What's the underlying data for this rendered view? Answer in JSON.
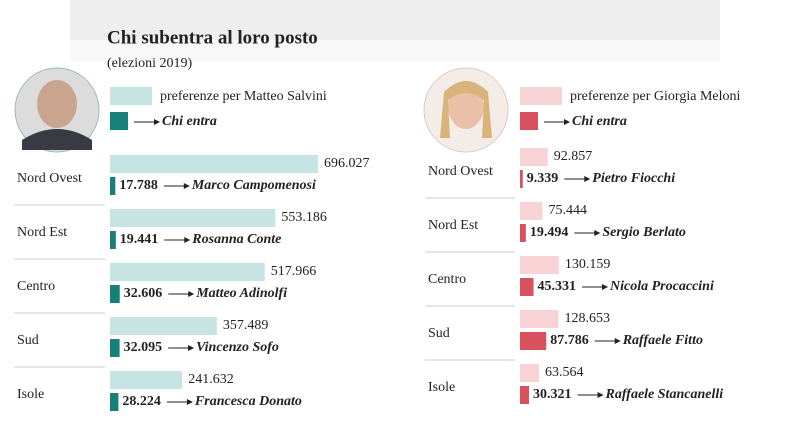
{
  "title": "Chi subentra al loro posto",
  "subtitle": "(elezioni 2019)",
  "chart_data": [
    {
      "type": "bar",
      "orientation": "horizontal",
      "categories": [
        "Nord Ovest",
        "Nord Est",
        "Centro",
        "Sud",
        "Isole"
      ],
      "series": [
        {
          "name": "preferenze per Matteo Salvini",
          "color": "#c6e4e3",
          "values": [
            696027,
            553186,
            517966,
            357489,
            241632
          ],
          "value_labels": [
            "696.027",
            "553.186",
            "517.966",
            "357.489",
            "241.632"
          ]
        },
        {
          "name": "Chi entra",
          "color": "#17807a",
          "values": [
            17788,
            19441,
            32606,
            32095,
            28224
          ],
          "value_labels": [
            "17.788",
            "19.441",
            "32.606",
            "32.095",
            "28.224"
          ],
          "entrants": [
            "Marco Campomenosi",
            "Rosanna Conte",
            "Matteo Adinolfi",
            "Vincenzo Sofo",
            "Francesca Donato"
          ]
        }
      ]
    },
    {
      "type": "bar",
      "orientation": "horizontal",
      "categories": [
        "Nord Ovest",
        "Nord Est",
        "Centro",
        "Sud",
        "Isole"
      ],
      "series": [
        {
          "name": "preferenze per Giorgia Meloni",
          "color": "#f8d3d6",
          "values": [
            92857,
            75444,
            130159,
            128653,
            63564
          ],
          "value_labels": [
            "92.857",
            "75.444",
            "130.159",
            "128.653",
            "63.564"
          ]
        },
        {
          "name": "Chi entra",
          "color": "#d9505f",
          "values": [
            9339,
            19494,
            45331,
            87786,
            30321
          ],
          "value_labels": [
            "9.339",
            "19.494",
            "45.331",
            "87.786",
            "30.321"
          ],
          "entrants": [
            "Pietro Fiocchi",
            "Sergio Berlato",
            "Nicola Procaccini",
            "Raffaele Fitto",
            "Raffaele Stancanelli"
          ]
        }
      ]
    }
  ]
}
